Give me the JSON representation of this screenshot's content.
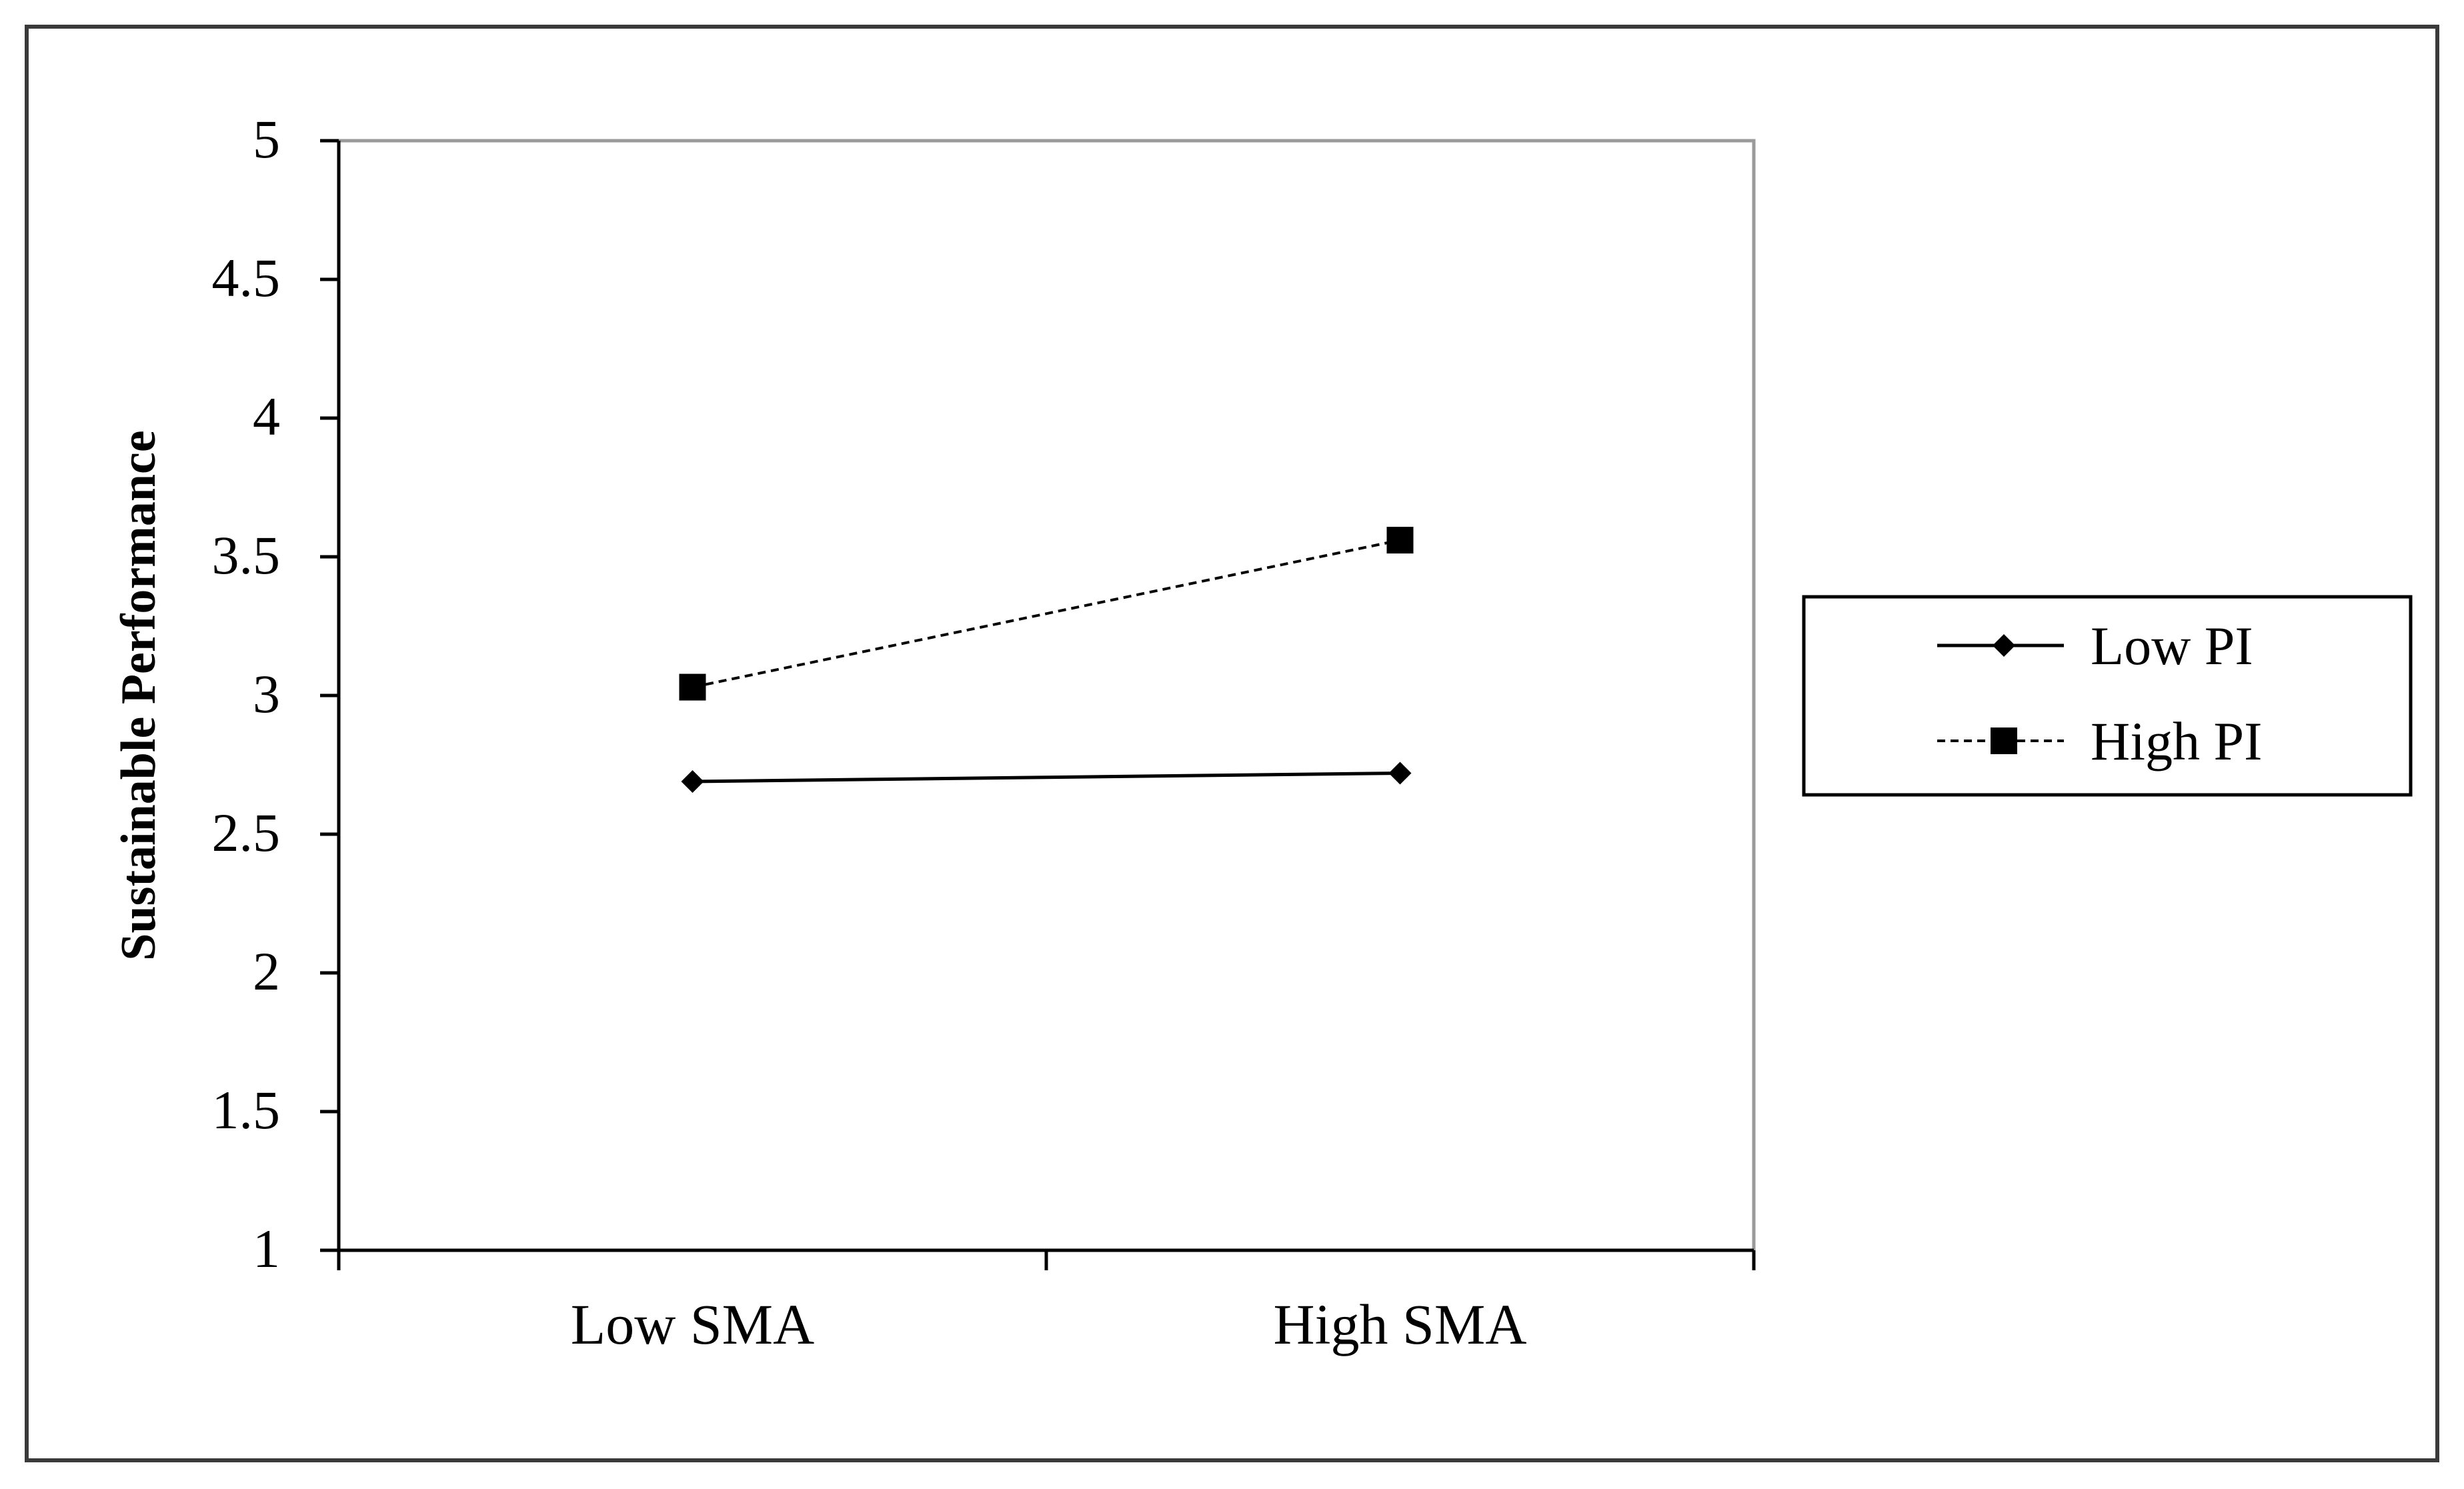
{
  "chart_data": {
    "type": "line",
    "title": "",
    "xlabel": "",
    "ylabel": "Sustainable Performance",
    "categories": [
      "Low SMA",
      "High SMA"
    ],
    "ylim": [
      1,
      5
    ],
    "yticks": [
      "1",
      "1.5",
      "2",
      "2.5",
      "3",
      "3.5",
      "4",
      "4.5",
      "5"
    ],
    "grid": false,
    "legend_position": "right",
    "series": [
      {
        "name": "Low PI",
        "values": [
          2.69,
          2.72
        ],
        "line_style": "solid",
        "marker": "diamond",
        "color": "#000000"
      },
      {
        "name": "High PI",
        "values": [
          3.03,
          3.56
        ],
        "line_style": "dashed",
        "marker": "square",
        "color": "#000000"
      }
    ]
  }
}
